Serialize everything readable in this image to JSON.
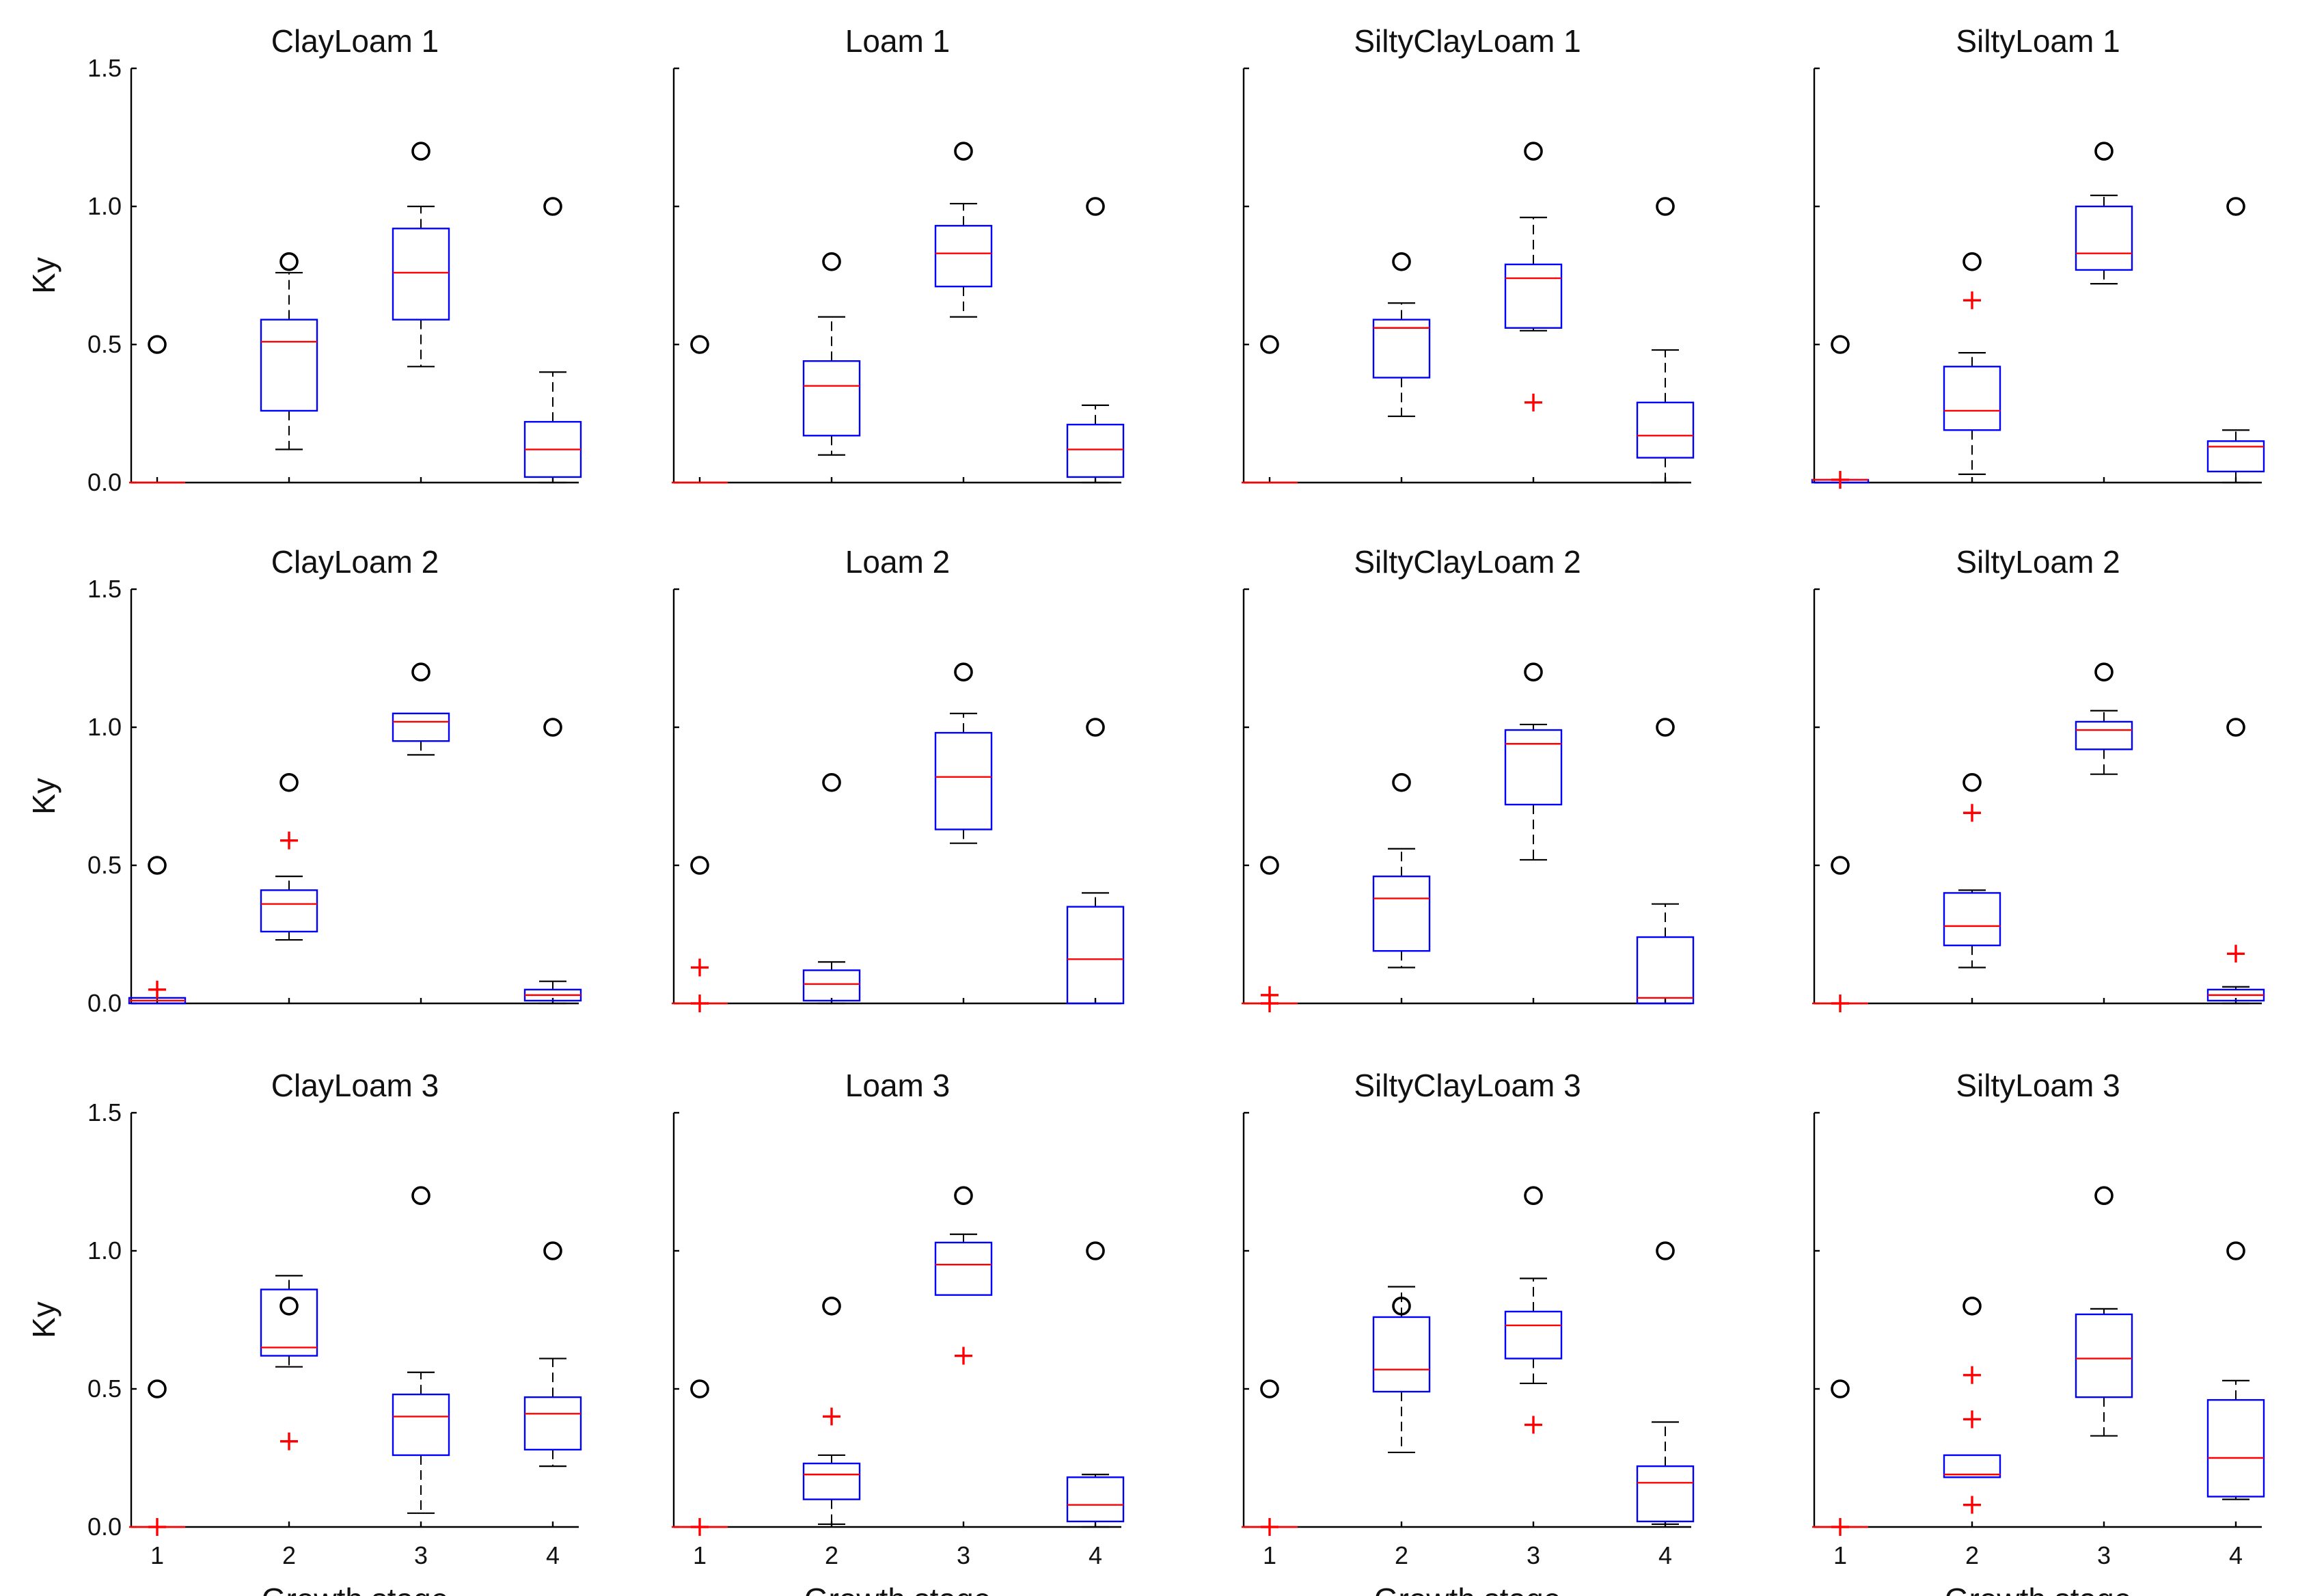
{
  "chart_data": {
    "type": "boxplot",
    "grid": false,
    "common": {
      "xlabel": "Growth stage",
      "ylabel": "Ky",
      "categories": [
        "1",
        "2",
        "3",
        "4"
      ],
      "ylim": [
        0,
        1.5
      ],
      "yticks": [
        "0.0",
        "0.5",
        "1.0",
        "1.5"
      ],
      "reference_points": [
        0.5,
        0.8,
        1.2,
        1.0
      ],
      "colors": {
        "box": "#0000ff",
        "median": "#ff0000",
        "whisker": "#000000",
        "outlier": "#ff0000",
        "reference": "#000000"
      }
    },
    "panels": [
      {
        "title": "ClayLoam 1",
        "boxes": [
          {
            "q1": 0,
            "median": 0,
            "q3": 0,
            "lo": 0,
            "hi": 0,
            "outliers": []
          },
          {
            "q1": 0.26,
            "median": 0.51,
            "q3": 0.59,
            "lo": 0.12,
            "hi": 0.76,
            "outliers": []
          },
          {
            "q1": 0.59,
            "median": 0.76,
            "q3": 0.92,
            "lo": 0.42,
            "hi": 1.0,
            "outliers": []
          },
          {
            "q1": 0.02,
            "median": 0.12,
            "q3": 0.22,
            "lo": 0.0,
            "hi": 0.4,
            "outliers": []
          }
        ]
      },
      {
        "title": "Loam 1",
        "boxes": [
          {
            "q1": 0,
            "median": 0,
            "q3": 0,
            "lo": 0,
            "hi": 0,
            "outliers": []
          },
          {
            "q1": 0.17,
            "median": 0.35,
            "q3": 0.44,
            "lo": 0.1,
            "hi": 0.6,
            "outliers": []
          },
          {
            "q1": 0.71,
            "median": 0.83,
            "q3": 0.93,
            "lo": 0.6,
            "hi": 1.01,
            "outliers": []
          },
          {
            "q1": 0.02,
            "median": 0.12,
            "q3": 0.21,
            "lo": 0.0,
            "hi": 0.28,
            "outliers": []
          }
        ]
      },
      {
        "title": "SiltyClayLoam 1",
        "boxes": [
          {
            "q1": 0,
            "median": 0,
            "q3": 0,
            "lo": 0,
            "hi": 0,
            "outliers": []
          },
          {
            "q1": 0.38,
            "median": 0.56,
            "q3": 0.59,
            "lo": 0.24,
            "hi": 0.65,
            "outliers": []
          },
          {
            "q1": 0.56,
            "median": 0.74,
            "q3": 0.79,
            "lo": 0.55,
            "hi": 0.96,
            "outliers": [
              0.29
            ]
          },
          {
            "q1": 0.09,
            "median": 0.17,
            "q3": 0.29,
            "lo": 0.0,
            "hi": 0.48,
            "outliers": []
          }
        ]
      },
      {
        "title": "SiltyLoam 1",
        "boxes": [
          {
            "q1": 0,
            "median": 0.01,
            "q3": 0.01,
            "lo": 0,
            "hi": 0.01,
            "outliers": [
              0.01
            ]
          },
          {
            "q1": 0.19,
            "median": 0.26,
            "q3": 0.42,
            "lo": 0.03,
            "hi": 0.47,
            "outliers": [
              0.66
            ]
          },
          {
            "q1": 0.77,
            "median": 0.83,
            "q3": 1.0,
            "lo": 0.72,
            "hi": 1.04,
            "outliers": []
          },
          {
            "q1": 0.04,
            "median": 0.13,
            "q3": 0.15,
            "lo": 0.0,
            "hi": 0.19,
            "outliers": []
          }
        ]
      },
      {
        "title": "ClayLoam 2",
        "boxes": [
          {
            "q1": 0.0,
            "median": 0.01,
            "q3": 0.02,
            "lo": 0,
            "hi": 0.02,
            "outliers": [
              0.05
            ]
          },
          {
            "q1": 0.26,
            "median": 0.36,
            "q3": 0.41,
            "lo": 0.23,
            "hi": 0.46,
            "outliers": [
              0.59
            ]
          },
          {
            "q1": 0.95,
            "median": 1.02,
            "q3": 1.05,
            "lo": 0.9,
            "hi": 1.05,
            "outliers": []
          },
          {
            "q1": 0.01,
            "median": 0.03,
            "q3": 0.05,
            "lo": 0.0,
            "hi": 0.08,
            "outliers": []
          }
        ]
      },
      {
        "title": "Loam 2",
        "boxes": [
          {
            "q1": 0,
            "median": 0,
            "q3": 0,
            "lo": 0,
            "hi": 0,
            "outliers": [
              0.13,
              0.0
            ]
          },
          {
            "q1": 0.01,
            "median": 0.07,
            "q3": 0.12,
            "lo": 0.0,
            "hi": 0.15,
            "outliers": []
          },
          {
            "q1": 0.63,
            "median": 0.82,
            "q3": 0.98,
            "lo": 0.58,
            "hi": 1.05,
            "outliers": []
          },
          {
            "q1": 0.0,
            "median": 0.16,
            "q3": 0.35,
            "lo": 0.0,
            "hi": 0.4,
            "outliers": []
          }
        ]
      },
      {
        "title": "SiltyClayLoam 2",
        "boxes": [
          {
            "q1": 0,
            "median": 0,
            "q3": 0,
            "lo": 0,
            "hi": 0,
            "outliers": [
              0.03,
              0.0
            ]
          },
          {
            "q1": 0.19,
            "median": 0.38,
            "q3": 0.46,
            "lo": 0.13,
            "hi": 0.56,
            "outliers": []
          },
          {
            "q1": 0.72,
            "median": 0.94,
            "q3": 0.99,
            "lo": 0.52,
            "hi": 1.01,
            "outliers": []
          },
          {
            "q1": 0.0,
            "median": 0.02,
            "q3": 0.24,
            "lo": 0.0,
            "hi": 0.36,
            "outliers": []
          }
        ]
      },
      {
        "title": "SiltyLoam 2",
        "boxes": [
          {
            "q1": 0,
            "median": 0,
            "q3": 0,
            "lo": 0,
            "hi": 0,
            "outliers": [
              0.0
            ]
          },
          {
            "q1": 0.21,
            "median": 0.28,
            "q3": 0.4,
            "lo": 0.13,
            "hi": 0.41,
            "outliers": [
              0.69
            ]
          },
          {
            "q1": 0.92,
            "median": 0.99,
            "q3": 1.02,
            "lo": 0.83,
            "hi": 1.06,
            "outliers": []
          },
          {
            "q1": 0.01,
            "median": 0.03,
            "q3": 0.05,
            "lo": 0.0,
            "hi": 0.06,
            "outliers": [
              0.18
            ]
          }
        ]
      },
      {
        "title": "ClayLoam 3",
        "boxes": [
          {
            "q1": 0,
            "median": 0,
            "q3": 0,
            "lo": 0,
            "hi": 0,
            "outliers": [
              0.0
            ]
          },
          {
            "q1": 0.62,
            "median": 0.65,
            "q3": 0.86,
            "lo": 0.58,
            "hi": 0.91,
            "outliers": [
              0.31
            ]
          },
          {
            "q1": 0.26,
            "median": 0.4,
            "q3": 0.48,
            "lo": 0.05,
            "hi": 0.56,
            "outliers": []
          },
          {
            "q1": 0.28,
            "median": 0.41,
            "q3": 0.47,
            "lo": 0.22,
            "hi": 0.61,
            "outliers": []
          }
        ]
      },
      {
        "title": "Loam 3",
        "boxes": [
          {
            "q1": 0,
            "median": 0,
            "q3": 0,
            "lo": 0,
            "hi": 0,
            "outliers": [
              0.0
            ]
          },
          {
            "q1": 0.1,
            "median": 0.19,
            "q3": 0.23,
            "lo": 0.01,
            "hi": 0.26,
            "outliers": [
              0.4
            ]
          },
          {
            "q1": 0.84,
            "median": 0.95,
            "q3": 1.03,
            "lo": 0.84,
            "hi": 1.06,
            "outliers": [
              0.62
            ]
          },
          {
            "q1": 0.02,
            "median": 0.08,
            "q3": 0.18,
            "lo": 0.0,
            "hi": 0.19,
            "outliers": []
          }
        ]
      },
      {
        "title": "SiltyClayLoam 3",
        "boxes": [
          {
            "q1": 0,
            "median": 0,
            "q3": 0,
            "lo": 0,
            "hi": 0,
            "outliers": [
              0.0
            ]
          },
          {
            "q1": 0.49,
            "median": 0.57,
            "q3": 0.76,
            "lo": 0.27,
            "hi": 0.87,
            "outliers": []
          },
          {
            "q1": 0.61,
            "median": 0.73,
            "q3": 0.78,
            "lo": 0.52,
            "hi": 0.9,
            "outliers": [
              0.37
            ]
          },
          {
            "q1": 0.02,
            "median": 0.16,
            "q3": 0.22,
            "lo": 0.01,
            "hi": 0.38,
            "outliers": []
          }
        ]
      },
      {
        "title": "SiltyLoam 3",
        "boxes": [
          {
            "q1": 0,
            "median": 0,
            "q3": 0,
            "lo": 0,
            "hi": 0,
            "outliers": [
              0.0
            ]
          },
          {
            "q1": 0.18,
            "median": 0.19,
            "q3": 0.26,
            "lo": 0.18,
            "hi": 0.26,
            "outliers": [
              0.55,
              0.39,
              0.08
            ]
          },
          {
            "q1": 0.47,
            "median": 0.61,
            "q3": 0.77,
            "lo": 0.33,
            "hi": 0.79,
            "outliers": []
          },
          {
            "q1": 0.11,
            "median": 0.25,
            "q3": 0.46,
            "lo": 0.1,
            "hi": 0.53,
            "outliers": []
          }
        ]
      }
    ]
  }
}
